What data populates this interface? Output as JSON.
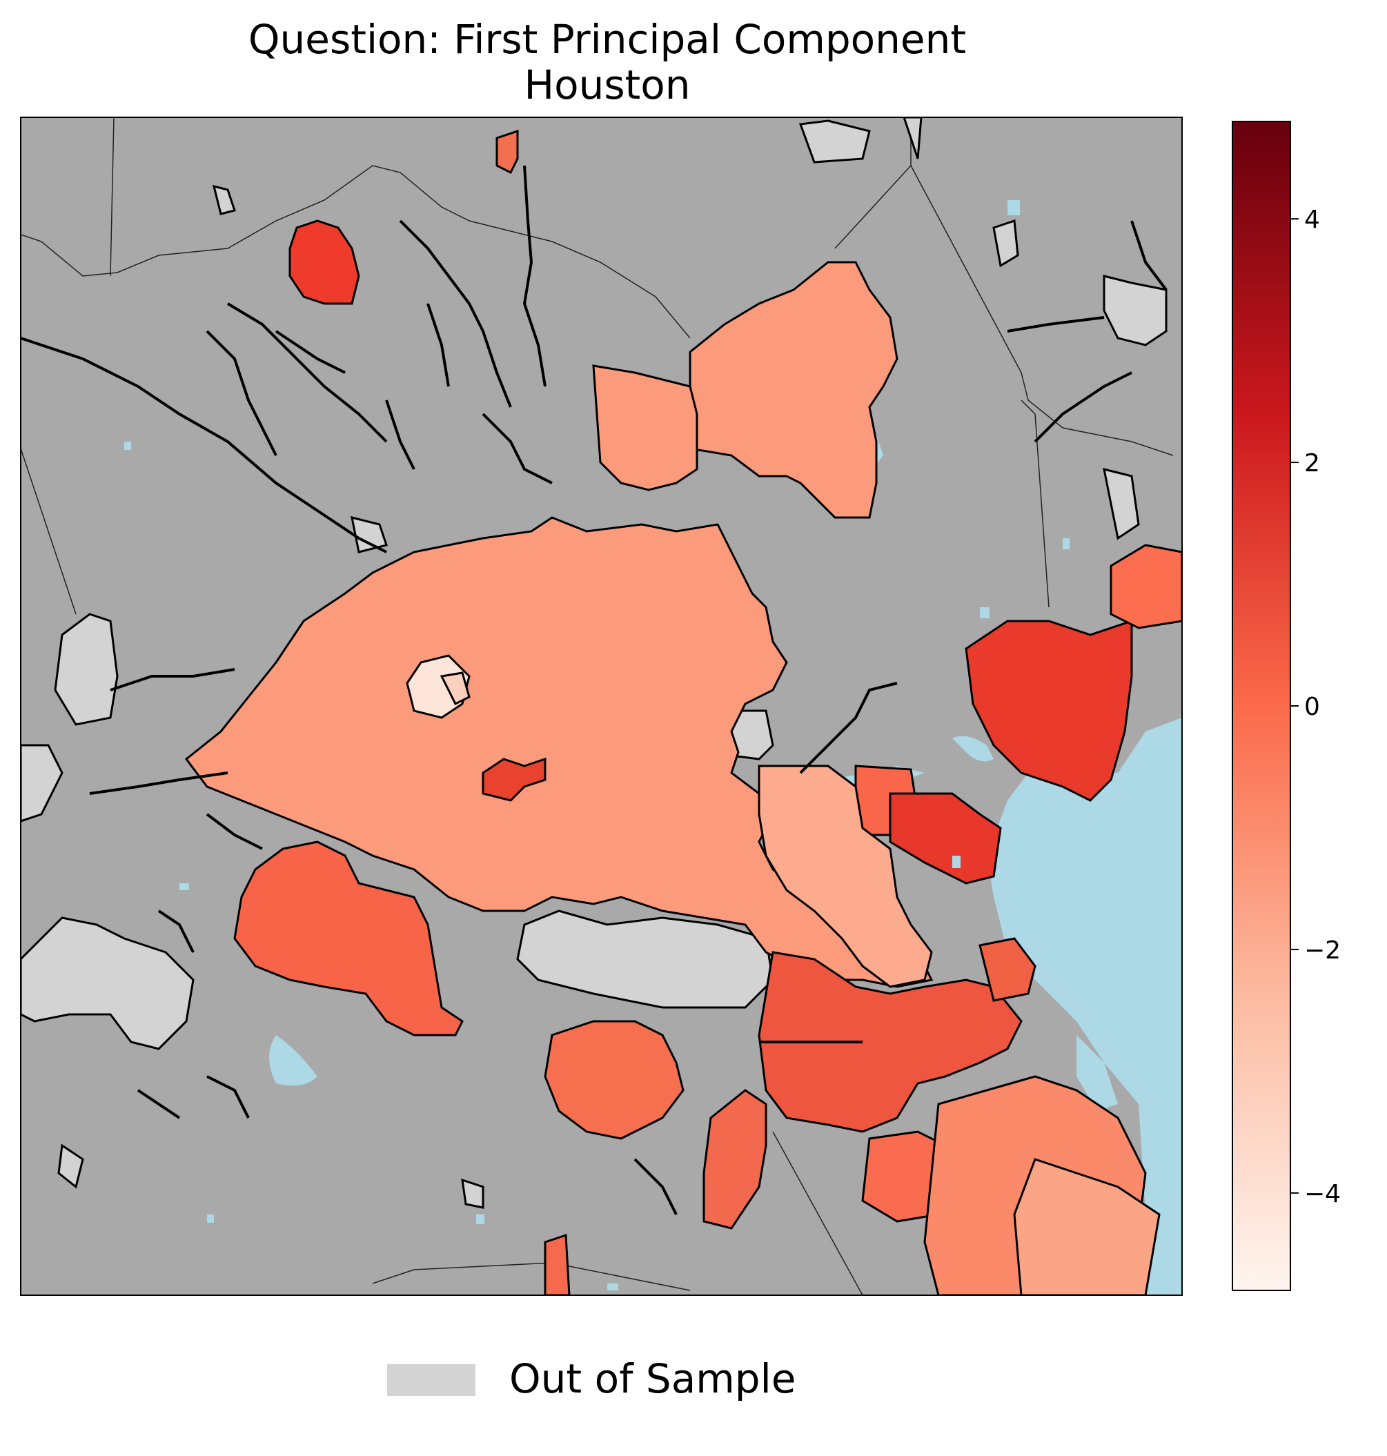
{
  "title_line1": "Question: First Principal Component",
  "title_line2": "Houston",
  "colorbar": {
    "colormap": "Reds",
    "min": -4.8,
    "max": 4.8,
    "ticks": [
      4,
      2,
      0,
      -2,
      -4
    ],
    "tick_labels": [
      "4",
      "2",
      "0",
      "−2",
      "−4"
    ]
  },
  "legend": {
    "label": "Out of Sample",
    "swatch_color": "#d3d3d3"
  },
  "colors": {
    "background_land": "#a9a9a9",
    "water": "#add8e6",
    "out_of_sample": "#d3d3d3",
    "border": "#000000"
  }
}
